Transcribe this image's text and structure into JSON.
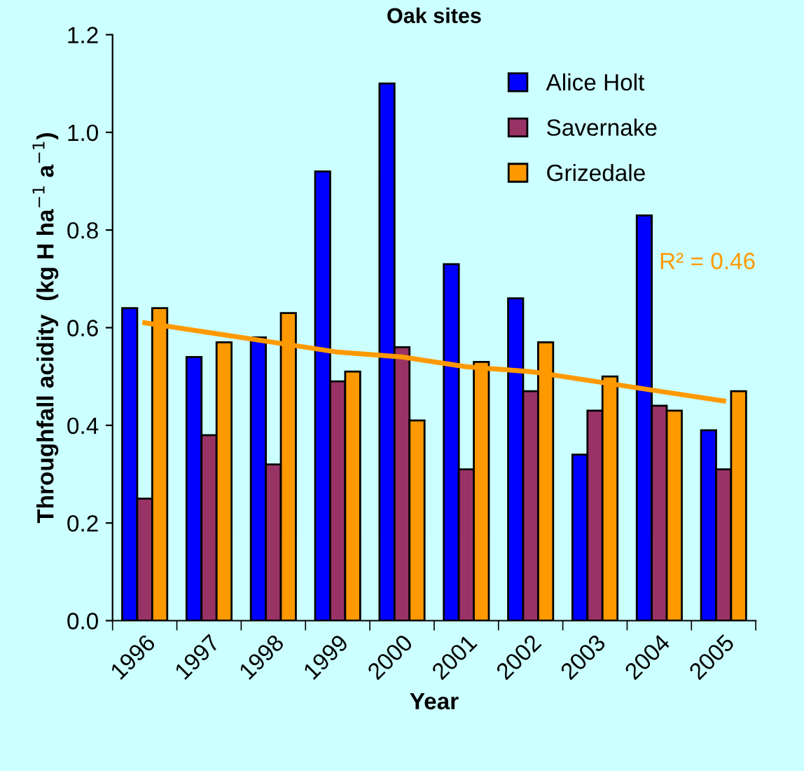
{
  "chart_data": {
    "type": "bar",
    "title": "Oak sites",
    "xlabel": "Year",
    "ylabel": "Throughfall acidity  (kg H ha$^{−1}$ a$^{−1}$)",
    "categories": [
      "1996",
      "1997",
      "1998",
      "1999",
      "2000",
      "2001",
      "2002",
      "2003",
      "2004",
      "2005"
    ],
    "series": [
      {
        "name": "Alice Holt",
        "color": "#0000ff",
        "values": [
          0.64,
          0.54,
          0.58,
          0.92,
          1.1,
          0.73,
          0.66,
          0.34,
          0.83,
          0.39
        ]
      },
      {
        "name": "Savernake",
        "color": "#993366",
        "values": [
          0.25,
          0.38,
          0.32,
          0.49,
          0.56,
          0.31,
          0.47,
          0.43,
          0.44,
          0.31
        ]
      },
      {
        "name": "Grizedale",
        "color": "#ff9900",
        "values": [
          0.64,
          0.57,
          0.63,
          0.51,
          0.41,
          0.53,
          0.57,
          0.5,
          0.43,
          0.47
        ]
      },
      {
        "type": "line",
        "color": "#ff9900",
        "values": [
          0.61,
          0.59,
          0.57,
          0.55,
          0.54,
          0.52,
          0.51,
          0.49,
          0.47,
          0.45
        ]
      }
    ],
    "annotations": [
      "R² = 0.46"
    ],
    "ylim": [
      0,
      1.2
    ],
    "yticks": [
      {
        "value": 0,
        "label": "0.0"
      },
      0.2,
      0.4,
      0.6,
      0.8,
      {
        "value": 1.0,
        "label": "1.0"
      },
      1.2
    ],
    "grid": false,
    "legend": "top right"
  }
}
